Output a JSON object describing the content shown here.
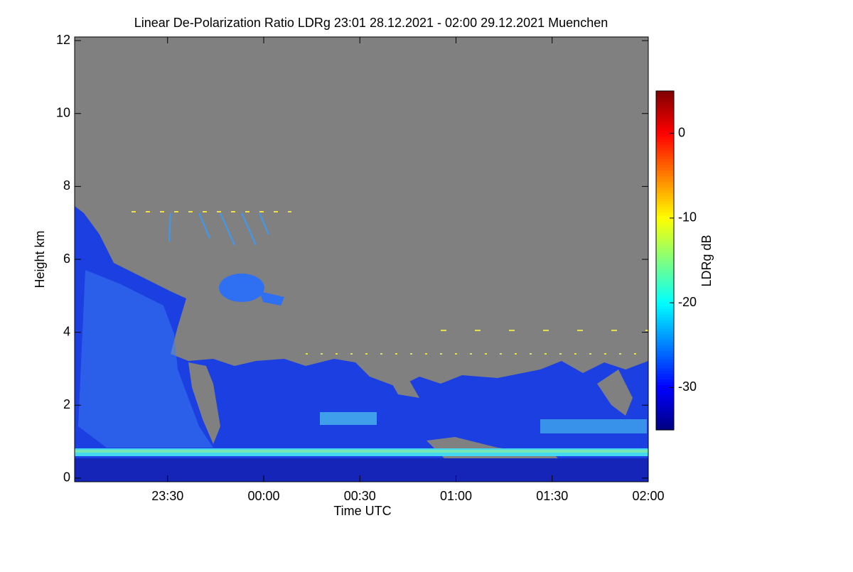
{
  "chart_data": {
    "type": "heatmap",
    "title": "Linear De-Polarization Ratio LDRg   23:01 28.12.2021 - 02:00 29.12.2021 Muenchen",
    "x_label": "Time UTC",
    "y_label": "Height km",
    "xlim": [
      "23:01",
      "02:00"
    ],
    "xticks": [
      "23:30",
      "00:00",
      "00:30",
      "01:00",
      "01:30",
      "02:00"
    ],
    "ylim": [
      -0.1,
      12.1
    ],
    "yticks": [
      0,
      2,
      4,
      6,
      8,
      10,
      12
    ],
    "colorbar": {
      "label": "LDRg dB",
      "lim": [
        -35,
        5
      ],
      "ticks": [
        0,
        -10,
        -20,
        -30
      ],
      "colormap": "jet"
    }
  }
}
